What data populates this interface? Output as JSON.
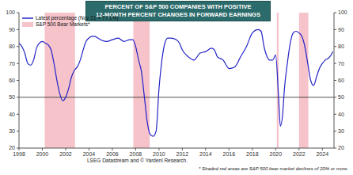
{
  "chart_data": {
    "type": "line",
    "title": "PERCENT OF S&P 500 COMPANIES WITH POSITIVE\n12-MONTH PERCENT CHANGES IN FORWARD EARNINGS",
    "x": [
      1998.0,
      1998.25,
      1998.5,
      1998.75,
      1999.0,
      1999.25,
      1999.5,
      1999.75,
      2000.0,
      2000.25,
      2000.5,
      2000.75,
      2001.0,
      2001.25,
      2001.5,
      2001.75,
      2002.0,
      2002.25,
      2002.5,
      2002.75,
      2003.0,
      2003.25,
      2003.5,
      2003.75,
      2004.0,
      2004.25,
      2004.5,
      2004.75,
      2005.0,
      2005.5,
      2006.0,
      2006.5,
      2007.0,
      2007.5,
      2007.75,
      2008.0,
      2008.25,
      2008.5,
      2008.75,
      2009.0,
      2009.25,
      2009.5,
      2009.75,
      2010.0,
      2010.25,
      2010.5,
      2010.75,
      2011.0,
      2011.5,
      2011.75,
      2012.0,
      2012.5,
      2013.0,
      2013.5,
      2014.0,
      2014.5,
      2014.75,
      2015.0,
      2015.5,
      2016.0,
      2016.5,
      2017.0,
      2017.5,
      2018.0,
      2018.5,
      2018.75,
      2019.0,
      2019.5,
      2019.75,
      2020.0,
      2020.25,
      2020.4,
      2020.6,
      2020.75,
      2021.0,
      2021.25,
      2021.5,
      2021.75,
      2022.0,
      2022.25,
      2022.5,
      2022.75,
      2023.0,
      2023.25,
      2023.5,
      2023.75,
      2024.0,
      2024.25,
      2024.5,
      2024.75,
      2024.9
    ],
    "series": [
      {
        "name": "Latest percentage (Nov 21 = 77.1%)",
        "color": "#2323c8",
        "values": [
          82,
          80,
          76,
          70,
          69,
          72,
          79,
          82,
          83,
          82,
          81,
          78,
          70,
          60,
          52,
          48,
          50,
          55,
          62,
          66,
          68,
          72,
          78,
          83,
          85,
          86,
          86,
          85,
          84,
          83,
          84,
          85,
          83,
          84,
          84,
          80,
          72,
          65,
          50,
          35,
          28,
          27,
          30,
          55,
          72,
          82,
          85,
          85,
          84,
          82,
          78,
          74,
          72,
          76,
          77,
          79,
          78,
          74,
          72,
          67,
          68,
          74,
          80,
          88,
          90,
          89,
          80,
          72,
          72,
          75,
          50,
          33,
          40,
          55,
          70,
          82,
          88,
          89,
          88,
          86,
          80,
          70,
          60,
          57,
          62,
          67,
          70,
          72,
          73,
          75,
          77.1
        ]
      }
    ],
    "shaded_ranges": {
      "name": "S&P 500 Bear Markets*",
      "color": "#f6c3cb",
      "ranges": [
        [
          2000.2,
          2002.8
        ],
        [
          2007.8,
          2009.2
        ],
        [
          2020.1,
          2020.25
        ],
        [
          2022.0,
          2022.8
        ]
      ]
    },
    "reference_line": 50,
    "xlim": [
      1998,
      2025
    ],
    "xticks": [
      1998,
      2000,
      2002,
      2004,
      2006,
      2008,
      2010,
      2012,
      2014,
      2016,
      2018,
      2020,
      2022,
      2024
    ],
    "ylim": [
      20,
      100
    ],
    "yticks": [
      20,
      30,
      40,
      50,
      60,
      70,
      80,
      90,
      100
    ],
    "source": "LSEG Datastream and © Yardeni Research.",
    "annotation": "* Shaded red areas are S&P 500 bear market declines of 20% or more.",
    "grid": false
  }
}
